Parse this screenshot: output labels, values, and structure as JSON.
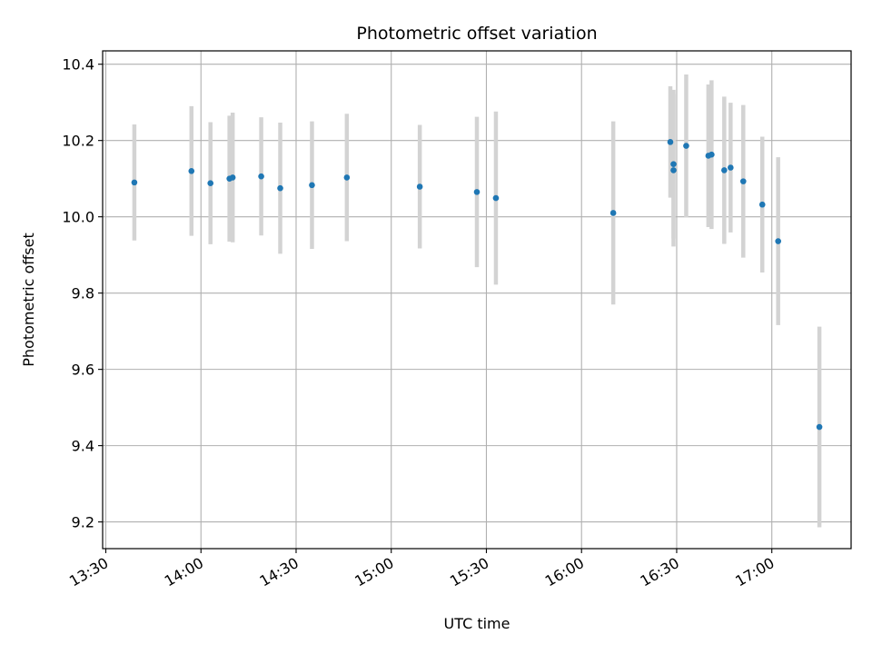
{
  "chart_data": {
    "type": "scatter",
    "title": "Photometric offset variation",
    "xlabel": "UTC time",
    "ylabel": "Photometric offset",
    "x_ticks": [
      "13:30",
      "14:00",
      "14:30",
      "15:00",
      "15:30",
      "16:00",
      "16:30",
      "17:00"
    ],
    "y_ticks": [
      "9.2",
      "9.4",
      "9.6",
      "9.8",
      "10.0",
      "10.2",
      "10.4"
    ],
    "xlim": [
      "13:29",
      "17:25"
    ],
    "ylim": [
      9.13,
      10.435
    ],
    "grid": true,
    "marker_color": "#1f77b4",
    "errorbar_color": "#d3d3d3",
    "points": [
      {
        "x": "13:39",
        "y": 10.09,
        "err": 0.152
      },
      {
        "x": "13:57",
        "y": 10.12,
        "err": 0.17
      },
      {
        "x": "14:03",
        "y": 10.088,
        "err": 0.16
      },
      {
        "x": "14:09",
        "y": 10.1,
        "err": 0.165
      },
      {
        "x": "14:10",
        "y": 10.103,
        "err": 0.17
      },
      {
        "x": "14:19",
        "y": 10.106,
        "err": 0.155
      },
      {
        "x": "14:25",
        "y": 10.075,
        "err": 0.172
      },
      {
        "x": "14:35",
        "y": 10.083,
        "err": 0.167
      },
      {
        "x": "14:46",
        "y": 10.103,
        "err": 0.167
      },
      {
        "x": "15:09",
        "y": 10.079,
        "err": 0.162
      },
      {
        "x": "15:27",
        "y": 10.065,
        "err": 0.197
      },
      {
        "x": "15:33",
        "y": 10.049,
        "err": 0.227
      },
      {
        "x": "16:10",
        "y": 10.01,
        "err": 0.24
      },
      {
        "x": "16:28",
        "y": 10.196,
        "err": 0.146
      },
      {
        "x": "16:29",
        "y": 10.138,
        "err": 0.195
      },
      {
        "x": "16:29",
        "y": 10.122,
        "err": 0.2
      },
      {
        "x": "16:33",
        "y": 10.186,
        "err": 0.187
      },
      {
        "x": "16:40",
        "y": 10.16,
        "err": 0.187
      },
      {
        "x": "16:41",
        "y": 10.163,
        "err": 0.195
      },
      {
        "x": "16:45",
        "y": 10.122,
        "err": 0.193
      },
      {
        "x": "16:47",
        "y": 10.129,
        "err": 0.17
      },
      {
        "x": "16:51",
        "y": 10.093,
        "err": 0.2
      },
      {
        "x": "16:57",
        "y": 10.032,
        "err": 0.178
      },
      {
        "x": "17:02",
        "y": 9.936,
        "err": 0.22
      },
      {
        "x": "17:15",
        "y": 9.449,
        "err": 0.263
      }
    ]
  }
}
